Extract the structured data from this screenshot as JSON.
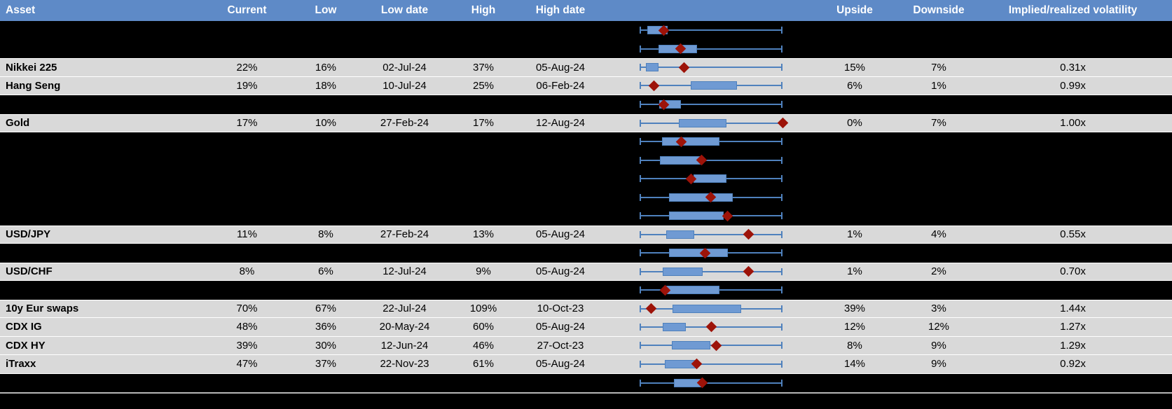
{
  "header": {
    "columns": [
      "Asset",
      "Current",
      "Low",
      "Low date",
      "High",
      "High date",
      "",
      "Upside",
      "Downside",
      "Implied/realized volatility"
    ]
  },
  "colors": {
    "header_bg": "#5e8ac7",
    "header_text": "#ffffff",
    "row_light": "#d9d9d9",
    "row_black": "#000000",
    "box_fill": "#6f9ad3",
    "box_border": "#4f81bd",
    "whisker": "#4f81bd",
    "marker": "#9d1309",
    "divider": "#b7b7b7"
  },
  "chart_data": {
    "type": "table",
    "plot_type": "box-whisker-range",
    "plot_note": "Each row has a range plot: whisker spans the low-high range (0 to 1 normalized), blue box shows an inner range, red diamond marks the current level. Redacted rows are blacked out but their plots remain visible.",
    "columns": [
      "Asset",
      "Current",
      "Low",
      "Low date",
      "High",
      "High date",
      "Upside",
      "Downside",
      "Implied/realized volatility"
    ],
    "rows": [
      {
        "kind": "redacted",
        "plot": {
          "box": [
            0.055,
            0.197
          ],
          "marker": 0.17
        }
      },
      {
        "kind": "redacted",
        "plot": {
          "box": [
            0.13,
            0.4
          ],
          "marker": 0.285
        }
      },
      {
        "kind": "data",
        "asset": "Nikkei 225",
        "current": "22%",
        "low": "16%",
        "low_date": "02-Jul-24",
        "high": "37%",
        "high_date": "05-Aug-24",
        "upside": "15%",
        "downside": "7%",
        "iv_rv": "0.31x",
        "plot": {
          "box": [
            0.044,
            0.132
          ],
          "marker": 0.31
        }
      },
      {
        "kind": "data",
        "asset": "Hang Seng",
        "current": "19%",
        "low": "18%",
        "low_date": "10-Jul-24",
        "high": "25%",
        "high_date": "06-Feb-24",
        "upside": "6%",
        "downside": "1%",
        "iv_rv": "0.99x",
        "plot": {
          "box": [
            0.36,
            0.68
          ],
          "marker": 0.1
        }
      },
      {
        "kind": "redacted",
        "plot": {
          "box": [
            0.137,
            0.29
          ],
          "marker": 0.17
        }
      },
      {
        "kind": "data",
        "asset": "Gold",
        "current": "17%",
        "low": "10%",
        "low_date": "27-Feb-24",
        "high": "17%",
        "high_date": "12-Aug-24",
        "upside": "0%",
        "downside": "7%",
        "iv_rv": "1.00x",
        "plot": {
          "box": [
            0.275,
            0.61
          ],
          "marker": 1.0
        }
      },
      {
        "kind": "redacted",
        "plot": {
          "box": [
            0.157,
            0.557
          ],
          "marker": 0.294
        }
      },
      {
        "kind": "redacted",
        "plot": {
          "box": [
            0.14,
            0.44
          ],
          "marker": 0.435
        }
      },
      {
        "kind": "redacted",
        "plot": {
          "box": [
            0.377,
            0.61
          ],
          "marker": 0.358
        }
      },
      {
        "kind": "redacted",
        "plot": {
          "box": [
            0.206,
            0.652
          ],
          "marker": 0.497
        }
      },
      {
        "kind": "redacted",
        "plot": {
          "box": [
            0.206,
            0.59
          ],
          "marker": 0.613
        }
      },
      {
        "kind": "data",
        "asset": "USD/JPY",
        "current": "11%",
        "low": "8%",
        "low_date": "27-Feb-24",
        "high": "13%",
        "high_date": "05-Aug-24",
        "upside": "1%",
        "downside": "4%",
        "iv_rv": "0.55x",
        "plot": {
          "box": [
            0.186,
            0.382
          ],
          "marker": 0.76
        }
      },
      {
        "kind": "redacted",
        "plot": {
          "box": [
            0.206,
            0.62
          ],
          "marker": 0.46
        }
      },
      {
        "kind": "data",
        "asset": "USD/CHF",
        "current": "8%",
        "low": "6%",
        "low_date": "12-Jul-24",
        "high": "9%",
        "high_date": "05-Aug-24",
        "upside": "1%",
        "downside": "2%",
        "iv_rv": "0.70x",
        "plot": {
          "box": [
            0.162,
            0.443
          ],
          "marker": 0.76
        }
      },
      {
        "kind": "redacted",
        "plot": {
          "box": [
            0.172,
            0.56
          ],
          "marker": 0.177
        }
      },
      {
        "kind": "data",
        "asset": "10y Eur swaps",
        "current": "70%",
        "low": "67%",
        "low_date": "22-Jul-24",
        "high": "109%",
        "high_date": "10-Oct-23",
        "upside": "39%",
        "downside": "3%",
        "iv_rv": "1.44x",
        "plot": {
          "box": [
            0.23,
            0.71
          ],
          "marker": 0.08
        }
      },
      {
        "kind": "data",
        "asset": "CDX IG",
        "current": "48%",
        "low": "36%",
        "low_date": "20-May-24",
        "high": "60%",
        "high_date": "05-Aug-24",
        "upside": "12%",
        "downside": "12%",
        "iv_rv": "1.27x",
        "plot": {
          "box": [
            0.16,
            0.323
          ],
          "marker": 0.5
        }
      },
      {
        "kind": "data",
        "asset": "CDX HY",
        "current": "39%",
        "low": "30%",
        "low_date": "12-Jun-24",
        "high": "46%",
        "high_date": "27-Oct-23",
        "upside": "8%",
        "downside": "9%",
        "iv_rv": "1.29x",
        "plot": {
          "box": [
            0.225,
            0.495
          ],
          "marker": 0.538
        }
      },
      {
        "kind": "data",
        "asset": "iTraxx",
        "current": "47%",
        "low": "37%",
        "low_date": "22-Nov-23",
        "high": "61%",
        "high_date": "05-Aug-24",
        "upside": "14%",
        "downside": "9%",
        "iv_rv": "0.92x",
        "plot": {
          "box": [
            0.177,
            0.4
          ],
          "marker": 0.4
        }
      },
      {
        "kind": "redacted",
        "plot": {
          "box": [
            0.24,
            0.43
          ],
          "marker": 0.44
        }
      }
    ]
  }
}
